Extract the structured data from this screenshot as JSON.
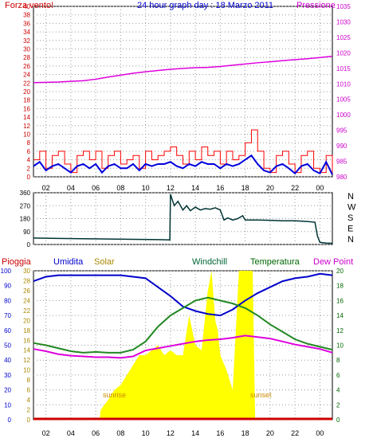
{
  "title": "24 hour graph day : 18 Marzo 2011",
  "x_ticks": [
    "02",
    "04",
    "06",
    "08",
    "10",
    "12",
    "14",
    "16",
    "18",
    "20",
    "22",
    "00"
  ],
  "colors": {
    "axis_left_top": "#cc0000",
    "axis_right_top": "#cc00cc",
    "wind_gust": "#ff0000",
    "wind_avg": "#0000dd",
    "pressure": "#dd00dd",
    "wind_dir": "#003333",
    "axis_rain": "#cc0000",
    "axis_humidity": "#0000cc",
    "axis_solar": "#aa8800",
    "axis_temp": "#006600",
    "solar_fill": "#ffff00",
    "humidity": "#0000cc",
    "temperature": "#228822",
    "dewpoint": "#dd00dd",
    "rain": "#cc0000",
    "sun_label": "#cc8800"
  },
  "chart_data": [
    {
      "type": "line",
      "title": "24 hour graph day : 18 Marzo 2011",
      "left_label": "Forza vento!",
      "right_label": "Pressione",
      "y_left_ticks": [
        "40",
        "38",
        "36",
        "34",
        "32",
        "30",
        "28",
        "26",
        "24",
        "22",
        "20",
        "18",
        "16",
        "14",
        "12",
        "10",
        "8",
        "6",
        "4",
        "2",
        "0"
      ],
      "y_right_ticks": [
        "1035",
        "1030",
        "1025",
        "1020",
        "1015",
        "1010",
        "1005",
        "1000",
        "995",
        "990",
        "985",
        "980"
      ],
      "ylim_left": [
        0,
        40
      ],
      "ylim_right": [
        980,
        1035
      ],
      "x_range_hours": [
        1,
        25
      ],
      "series": [
        {
          "name": "Pressione",
          "x": [
            1,
            2,
            3,
            4,
            5,
            6,
            7,
            8,
            9,
            10,
            11,
            12,
            13,
            14,
            15,
            16,
            17,
            18,
            19,
            20,
            21,
            22,
            23,
            24,
            25
          ],
          "values": [
            1010.4,
            1010.5,
            1010.6,
            1010.8,
            1011.0,
            1011.5,
            1012.2,
            1012.8,
            1013.4,
            1013.9,
            1014.3,
            1014.7,
            1015.0,
            1015.2,
            1015.3,
            1015.6,
            1016.0,
            1016.4,
            1016.8,
            1017.1,
            1017.5,
            1017.8,
            1018.1,
            1018.5,
            1018.9
          ]
        },
        {
          "x": [
            1,
            1.5,
            2,
            2.5,
            3,
            3.5,
            4,
            4.5,
            5,
            5.5,
            6,
            6.5,
            7,
            7.5,
            8,
            8.5,
            9,
            9.5,
            10,
            10.5,
            11,
            11.5,
            12,
            12.5,
            13,
            13.5,
            14,
            14.5,
            15,
            15.5,
            16,
            16.5,
            17,
            17.5,
            18,
            18.5,
            19,
            19.5,
            20,
            20.5,
            21,
            21.5,
            22,
            22.5,
            23,
            23.5,
            24,
            24.5,
            25
          ],
          "values": [
            4,
            6,
            2,
            5,
            6,
            3,
            1,
            5,
            6,
            4,
            6,
            2,
            5,
            6,
            3,
            4,
            5,
            2,
            6,
            4,
            5,
            6,
            7,
            5,
            3,
            6,
            4,
            7,
            5,
            6,
            3,
            6,
            4,
            5,
            8,
            11,
            6,
            2,
            1,
            5,
            6,
            3,
            1,
            5,
            6,
            2,
            1,
            5,
            0.5
          ]
        },
        {
          "x": [
            1,
            1.5,
            2,
            2.5,
            3,
            3.5,
            4,
            4.5,
            5,
            5.5,
            6,
            6.5,
            7,
            7.5,
            8,
            8.5,
            9,
            9.5,
            10,
            10.5,
            11,
            11.5,
            12,
            12.5,
            13,
            13.5,
            14,
            14.5,
            15,
            15.5,
            16,
            16.5,
            17,
            17.5,
            18,
            18.5,
            19,
            19.5,
            20,
            20.5,
            21,
            21.5,
            22,
            22.5,
            23,
            23.5,
            24,
            24.5,
            25
          ],
          "values": [
            2.5,
            3.5,
            1.5,
            2.5,
            3,
            2,
            1,
            2.5,
            3,
            2,
            3,
            1,
            2.5,
            3,
            2,
            2,
            3,
            1.5,
            3,
            2.5,
            3,
            3,
            3.5,
            2.5,
            2,
            3,
            2.5,
            3.5,
            3,
            3,
            2,
            3,
            2.5,
            3,
            4,
            5,
            3,
            1.5,
            1,
            2.5,
            3,
            2,
            0.8,
            2.5,
            3,
            1.5,
            0.8,
            3.5,
            0.5
          ]
        }
      ]
    },
    {
      "type": "line",
      "y_left_ticks": [
        "360",
        "270",
        "180",
        "90",
        "0"
      ],
      "y_right_ticks": [
        "N",
        "W",
        "S",
        "E",
        "N"
      ],
      "ylim": [
        0,
        360
      ],
      "x_range_hours": [
        1,
        25
      ],
      "series": [
        {
          "x": [
            1,
            3,
            5,
            7,
            9,
            11,
            11.95,
            12,
            12.3,
            12.6,
            13,
            13.3,
            13.6,
            14,
            14.4,
            14.8,
            15.2,
            15.6,
            16,
            16.3,
            16.6,
            17,
            17.4,
            17.8,
            18,
            19,
            20,
            21,
            22,
            23,
            23.6,
            23.8,
            24,
            24.5,
            25
          ],
          "values": [
            45,
            42,
            40,
            38,
            36,
            34,
            32,
            350,
            270,
            300,
            240,
            270,
            235,
            260,
            240,
            250,
            245,
            255,
            240,
            170,
            185,
            170,
            180,
            200,
            170,
            170,
            168,
            165,
            165,
            160,
            155,
            60,
            15,
            10,
            8
          ]
        }
      ]
    },
    {
      "type": "area",
      "labels_top": [
        "Pioggia",
        "Umidita",
        "Solar",
        "Windchill",
        "Temperatura",
        "Dew Point"
      ],
      "y_rain_ticks": [
        "30",
        "28",
        "26",
        "24",
        "22",
        "20",
        "18",
        "16",
        "14",
        "12",
        "10",
        "8",
        "6",
        "4",
        "2",
        "0"
      ],
      "y_humidity_ticks": [
        "100",
        "90",
        "80",
        "70",
        "60",
        "50",
        "40",
        "30",
        "20",
        "10",
        "0"
      ],
      "y_temp_ticks": [
        "20",
        "18",
        "16",
        "14",
        "12",
        "10",
        "8",
        "6",
        "4",
        "2",
        "0"
      ],
      "ylim_rain": [
        0,
        30
      ],
      "ylim_humidity": [
        0,
        100
      ],
      "ylim_temp": [
        0,
        20
      ],
      "x_range_hours": [
        1,
        25
      ],
      "annotations": [
        "sunrise",
        "sunset"
      ],
      "series": [
        {
          "name": "Umidita",
          "x": [
            1,
            2,
            3,
            4,
            5,
            6,
            7,
            8,
            9,
            10,
            11,
            12,
            13,
            14,
            15,
            16,
            17,
            18,
            19,
            20,
            21,
            22,
            23,
            24,
            25
          ],
          "values": [
            93,
            96,
            97,
            97,
            97,
            97,
            97,
            97,
            96,
            95,
            89,
            83,
            76,
            73,
            71,
            70,
            74,
            80,
            85,
            89,
            93,
            95,
            96,
            98,
            97
          ]
        },
        {
          "name": "Temperatura",
          "x": [
            1,
            2,
            3,
            4,
            5,
            6,
            7,
            8,
            9,
            10,
            11,
            12,
            13,
            14,
            15,
            16,
            17,
            18,
            19,
            20,
            21,
            22,
            23,
            24,
            25
          ],
          "values": [
            10.3,
            10.0,
            9.6,
            9.2,
            9.0,
            9.1,
            9.0,
            9.0,
            9.4,
            10.5,
            12.5,
            14.0,
            15.0,
            16.0,
            16.4,
            16.0,
            15.6,
            15.0,
            14.0,
            12.8,
            11.8,
            10.8,
            10.2,
            9.8,
            9.4
          ]
        },
        {
          "name": "Dew Point",
          "x": [
            1,
            2,
            3,
            4,
            5,
            6,
            7,
            8,
            9,
            10,
            11,
            12,
            13,
            14,
            15,
            16,
            17,
            18,
            19,
            20,
            21,
            22,
            23,
            24,
            25
          ],
          "values": [
            9.5,
            9.2,
            8.8,
            8.6,
            8.5,
            8.4,
            8.4,
            8.3,
            8.5,
            9.3,
            9.6,
            9.9,
            10.2,
            10.5,
            10.7,
            10.8,
            11.0,
            11.3,
            11.1,
            10.9,
            10.5,
            10.1,
            9.8,
            9.5,
            9.0
          ]
        },
        {
          "name": "Solar",
          "x": [
            1,
            6.3,
            6.4,
            7,
            7.5,
            8,
            8.5,
            9,
            9.5,
            10,
            10.5,
            11,
            11.5,
            12,
            12.5,
            13,
            13.5,
            14,
            14.5,
            15,
            15.3,
            15.6,
            15.8,
            16,
            16.5,
            17,
            17.5,
            17.8,
            18,
            18.6,
            18.8,
            25
          ],
          "values": [
            0,
            0,
            2,
            4,
            6,
            7,
            9,
            11,
            13,
            13,
            14,
            15,
            13,
            14,
            13,
            13,
            21,
            15,
            14,
            26,
            30,
            20,
            18,
            13,
            10,
            6,
            30,
            30,
            30,
            30,
            0,
            0
          ]
        },
        {
          "name": "Pioggia",
          "x": [
            1,
            25
          ],
          "values": [
            0,
            0
          ]
        }
      ]
    }
  ]
}
